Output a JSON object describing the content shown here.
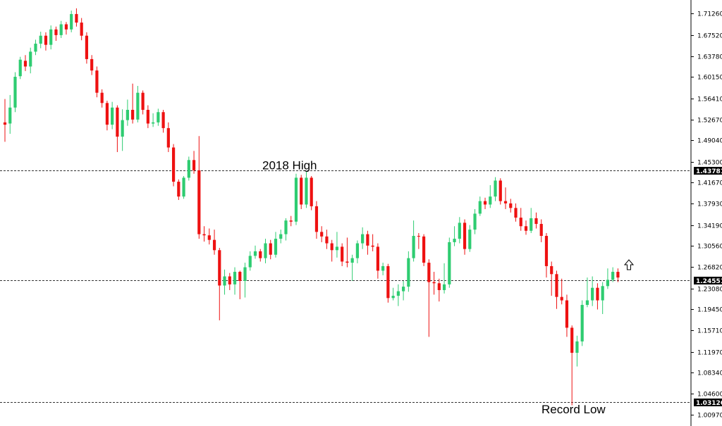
{
  "chart_data": {
    "type": "candlestick",
    "ylim": [
      0.9897,
      1.7366
    ],
    "y_ticks": [
      "1.71260",
      "1.67520",
      "1.63780",
      "1.60150",
      "1.56410",
      "1.52670",
      "1.49040",
      "1.45300",
      "1.41670",
      "1.37930",
      "1.34190",
      "1.30560",
      "1.26820",
      "1.23080",
      "1.19450",
      "1.15710",
      "1.11970",
      "1.08340",
      "1.04600",
      "1.00970"
    ],
    "reference_lines": [
      {
        "value": 1.43781,
        "label": "1.43781"
      },
      {
        "value": 1.24551,
        "label": "1.24551"
      },
      {
        "value": 1.03126,
        "label": "1.03126"
      }
    ],
    "annotations": [
      {
        "text": "2018 High",
        "value": 1.44
      },
      {
        "text": "Record Low",
        "value": 1.012
      }
    ],
    "colors": {
      "up": "#2ecc71",
      "down": "#ee1111",
      "wick_up": "#2ecc71",
      "wick_down": "#ee1111",
      "ref_line": "#333333",
      "label_bg": "#000000"
    },
    "candles": [
      [
        1.522,
        1.518,
        1.563,
        1.488
      ],
      [
        1.52,
        1.548,
        1.57,
        1.502
      ],
      [
        1.548,
        1.602,
        1.61,
        1.54
      ],
      [
        1.603,
        1.632,
        1.637,
        1.598
      ],
      [
        1.63,
        1.62,
        1.64,
        1.612
      ],
      [
        1.62,
        1.646,
        1.653,
        1.608
      ],
      [
        1.646,
        1.66,
        1.667,
        1.64
      ],
      [
        1.66,
        1.674,
        1.681,
        1.652
      ],
      [
        1.674,
        1.658,
        1.68,
        1.648
      ],
      [
        1.658,
        1.685,
        1.692,
        1.65
      ],
      [
        1.685,
        1.675,
        1.69,
        1.665
      ],
      [
        1.675,
        1.694,
        1.7,
        1.67
      ],
      [
        1.694,
        1.685,
        1.698,
        1.676
      ],
      [
        1.685,
        1.712,
        1.718,
        1.68
      ],
      [
        1.712,
        1.697,
        1.722,
        1.69
      ],
      [
        1.697,
        1.674,
        1.705,
        1.666
      ],
      [
        1.674,
        1.633,
        1.68,
        1.625
      ],
      [
        1.633,
        1.613,
        1.64,
        1.605
      ],
      [
        1.613,
        1.574,
        1.62,
        1.566
      ],
      [
        1.574,
        1.556,
        1.58,
        1.548
      ],
      [
        1.556,
        1.518,
        1.56,
        1.508
      ],
      [
        1.518,
        1.548,
        1.558,
        1.51
      ],
      [
        1.548,
        1.497,
        1.552,
        1.47
      ],
      [
        1.497,
        1.526,
        1.545,
        1.472
      ],
      [
        1.526,
        1.544,
        1.562,
        1.516
      ],
      [
        1.544,
        1.527,
        1.59,
        1.52
      ],
      [
        1.527,
        1.574,
        1.586,
        1.522
      ],
      [
        1.574,
        1.544,
        1.578,
        1.536
      ],
      [
        1.544,
        1.52,
        1.552,
        1.512
      ],
      [
        1.52,
        1.522,
        1.538,
        1.514
      ],
      [
        1.522,
        1.54,
        1.546,
        1.516
      ],
      [
        1.54,
        1.512,
        1.544,
        1.504
      ],
      [
        1.512,
        1.478,
        1.522,
        1.47
      ],
      [
        1.478,
        1.418,
        1.484,
        1.41
      ],
      [
        1.418,
        1.392,
        1.422,
        1.386
      ],
      [
        1.392,
        1.425,
        1.428,
        1.388
      ],
      [
        1.425,
        1.456,
        1.462,
        1.42
      ],
      [
        1.456,
        1.438,
        1.472,
        1.432
      ],
      [
        1.438,
        1.326,
        1.498,
        1.318
      ],
      [
        1.326,
        1.324,
        1.34,
        1.313
      ],
      [
        1.324,
        1.316,
        1.336,
        1.308
      ],
      [
        1.316,
        1.298,
        1.334,
        1.29
      ],
      [
        1.298,
        1.236,
        1.302,
        1.175
      ],
      [
        1.236,
        1.252,
        1.264,
        1.22
      ],
      [
        1.252,
        1.238,
        1.258,
        1.228
      ],
      [
        1.238,
        1.26,
        1.268,
        1.22
      ],
      [
        1.26,
        1.244,
        1.262,
        1.212
      ],
      [
        1.244,
        1.268,
        1.276,
        1.215
      ],
      [
        1.268,
        1.288,
        1.296,
        1.262
      ],
      [
        1.288,
        1.296,
        1.306,
        1.283
      ],
      [
        1.296,
        1.284,
        1.3,
        1.278
      ],
      [
        1.284,
        1.31,
        1.318,
        1.275
      ],
      [
        1.31,
        1.29,
        1.316,
        1.282
      ],
      [
        1.29,
        1.318,
        1.33,
        1.285
      ],
      [
        1.318,
        1.326,
        1.334,
        1.31
      ],
      [
        1.326,
        1.35,
        1.354,
        1.315
      ],
      [
        1.35,
        1.348,
        1.358,
        1.34
      ],
      [
        1.348,
        1.425,
        1.432,
        1.342
      ],
      [
        1.425,
        1.378,
        1.43,
        1.37
      ],
      [
        1.378,
        1.425,
        1.436,
        1.372
      ],
      [
        1.425,
        1.375,
        1.428,
        1.368
      ],
      [
        1.375,
        1.33,
        1.384,
        1.318
      ],
      [
        1.33,
        1.322,
        1.34,
        1.312
      ],
      [
        1.322,
        1.31,
        1.334,
        1.3
      ],
      [
        1.31,
        1.298,
        1.316,
        1.278
      ],
      [
        1.298,
        1.304,
        1.33,
        1.285
      ],
      [
        1.304,
        1.278,
        1.31,
        1.27
      ],
      [
        1.278,
        1.276,
        1.32,
        1.268
      ],
      [
        1.276,
        1.284,
        1.29,
        1.244
      ],
      [
        1.284,
        1.31,
        1.315,
        1.275
      ],
      [
        1.31,
        1.326,
        1.338,
        1.3
      ],
      [
        1.326,
        1.306,
        1.332,
        1.29
      ],
      [
        1.306,
        1.304,
        1.326,
        1.296
      ],
      [
        1.304,
        1.262,
        1.31,
        1.248
      ],
      [
        1.262,
        1.27,
        1.276,
        1.254
      ],
      [
        1.27,
        1.214,
        1.274,
        1.206
      ],
      [
        1.214,
        1.218,
        1.232,
        1.21
      ],
      [
        1.218,
        1.226,
        1.238,
        1.2
      ],
      [
        1.226,
        1.234,
        1.244,
        1.21
      ],
      [
        1.234,
        1.284,
        1.296,
        1.225
      ],
      [
        1.284,
        1.323,
        1.35,
        1.278
      ],
      [
        1.323,
        1.322,
        1.328,
        1.3
      ],
      [
        1.322,
        1.276,
        1.326,
        1.27
      ],
      [
        1.276,
        1.242,
        1.282,
        1.146
      ],
      [
        1.242,
        1.24,
        1.26,
        1.22
      ],
      [
        1.24,
        1.228,
        1.248,
        1.208
      ],
      [
        1.228,
        1.238,
        1.275,
        1.222
      ],
      [
        1.238,
        1.312,
        1.32,
        1.232
      ],
      [
        1.312,
        1.318,
        1.34,
        1.305
      ],
      [
        1.318,
        1.346,
        1.356,
        1.31
      ],
      [
        1.346,
        1.3,
        1.352,
        1.29
      ],
      [
        1.3,
        1.334,
        1.342,
        1.295
      ],
      [
        1.334,
        1.362,
        1.37,
        1.326
      ],
      [
        1.362,
        1.384,
        1.392,
        1.358
      ],
      [
        1.384,
        1.378,
        1.39,
        1.37
      ],
      [
        1.378,
        1.392,
        1.412,
        1.372
      ],
      [
        1.392,
        1.42,
        1.426,
        1.384
      ],
      [
        1.42,
        1.384,
        1.424,
        1.378
      ],
      [
        1.384,
        1.38,
        1.408,
        1.37
      ],
      [
        1.38,
        1.372,
        1.388,
        1.364
      ],
      [
        1.372,
        1.355,
        1.38,
        1.348
      ],
      [
        1.355,
        1.34,
        1.372,
        1.332
      ],
      [
        1.34,
        1.332,
        1.35,
        1.325
      ],
      [
        1.332,
        1.354,
        1.372,
        1.328
      ],
      [
        1.354,
        1.344,
        1.364,
        1.336
      ],
      [
        1.344,
        1.323,
        1.352,
        1.312
      ],
      [
        1.323,
        1.27,
        1.328,
        1.25
      ],
      [
        1.27,
        1.256,
        1.278,
        1.218
      ],
      [
        1.256,
        1.216,
        1.262,
        1.195
      ],
      [
        1.216,
        1.21,
        1.248,
        1.203
      ],
      [
        1.21,
        1.162,
        1.22,
        1.146
      ],
      [
        1.162,
        1.118,
        1.166,
        1.026
      ],
      [
        1.118,
        1.138,
        1.148,
        1.094
      ],
      [
        1.138,
        1.202,
        1.21,
        1.13
      ],
      [
        1.202,
        1.21,
        1.25,
        1.198
      ],
      [
        1.21,
        1.232,
        1.252,
        1.2
      ],
      [
        1.232,
        1.21,
        1.24,
        1.194
      ],
      [
        1.21,
        1.235,
        1.242,
        1.186
      ],
      [
        1.235,
        1.246,
        1.266,
        1.23
      ],
      [
        1.246,
        1.26,
        1.268,
        1.242
      ],
      [
        1.26,
        1.25,
        1.266,
        1.242
      ]
    ]
  }
}
